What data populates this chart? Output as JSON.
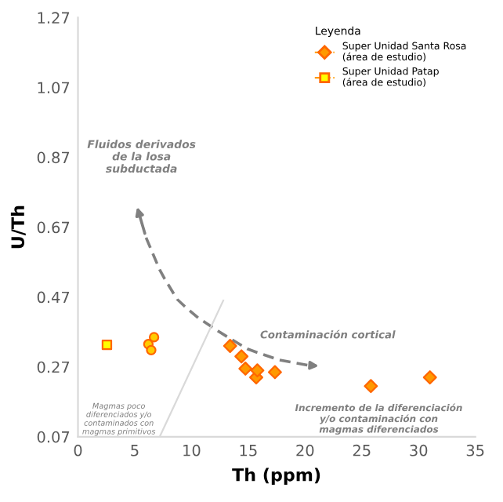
{
  "chart_data": {
    "type": "scatter",
    "xlabel": "Th (ppm)",
    "ylabel": "U/Th",
    "legend_title": "Leyenda",
    "legend": "top right",
    "grid": false,
    "xlim": [
      0,
      35
    ],
    "ylim": [
      0.07,
      1.27
    ],
    "xticks": [
      0,
      5,
      10,
      15,
      20,
      25,
      30,
      35
    ],
    "yticks": [
      0.07,
      0.27,
      0.47,
      0.67,
      0.87,
      1.07,
      1.27
    ],
    "series": [
      {
        "name": "Super Unidad Santa Rosa\n(área de estudio)",
        "color": "#ff9900",
        "marker": "diamond",
        "x": [
          13.4,
          14.4,
          14.75,
          15.7,
          15.8,
          17.35,
          25.8,
          31.0
        ],
        "values": [
          0.33,
          0.3,
          0.265,
          0.24,
          0.26,
          0.255,
          0.215,
          0.24
        ]
      },
      {
        "name": "Super Unidad Patap\n(área de estudio)",
        "color": "#ffff00",
        "marker": "square",
        "x": [
          2.55
        ],
        "values": [
          0.333
        ]
      },
      {
        "color": "#ffcc00",
        "marker": "circle",
        "x": [
          6.2,
          6.45,
          6.7
        ],
        "values": [
          0.335,
          0.318,
          0.355
        ]
      },
      {
        "type": "line",
        "color": "#d9d9d9",
        "marker": "none",
        "x": [
          7.2,
          12.8
        ],
        "values": [
          0.07,
          0.46
        ]
      }
    ],
    "annotations": [
      "Fluidos derivados\nde la losa\nsubductada",
      "Contaminación cortical",
      "Incremento de la diferenciación\ny/o contaminación con\nmagmas diferenciados",
      "Magmas poco\ndiferenciados y/o\ncontaminados con\nmagmas primitivos"
    ]
  }
}
